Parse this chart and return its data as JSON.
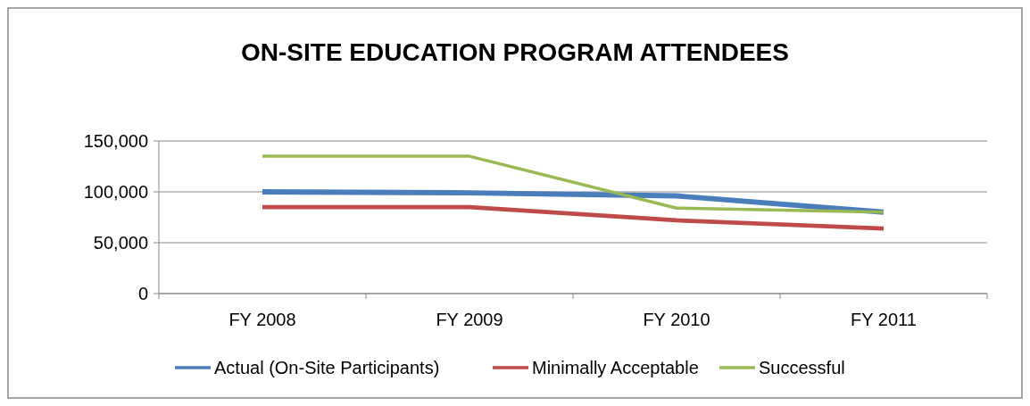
{
  "chart_data": {
    "type": "line",
    "title": "ON-SITE EDUCATION PROGRAM ATTENDEES",
    "categories": [
      "FY 2008",
      "FY 2009",
      "FY 2010",
      "FY 2011"
    ],
    "series": [
      {
        "name": "Actual  (On-Site Participants)",
        "color": "#4a7ebb",
        "values": [
          100000,
          99000,
          96000,
          80000
        ]
      },
      {
        "name": "Minimally Acceptable",
        "color": "#be4b48",
        "values": [
          85000,
          85000,
          72000,
          64000
        ]
      },
      {
        "name": "Successful",
        "color": "#98b954",
        "values": [
          135000,
          135000,
          84000,
          80000
        ]
      }
    ],
    "ylim": [
      0,
      150000
    ],
    "yticks": [
      {
        "value": 0,
        "label": "0"
      },
      {
        "value": 50000,
        "label": "50,000"
      },
      {
        "value": 100000,
        "label": "100,000"
      },
      {
        "value": 150000,
        "label": "150,000"
      }
    ],
    "grid": "y",
    "legend": "bottom",
    "marker": "none",
    "line_style": "solid"
  }
}
